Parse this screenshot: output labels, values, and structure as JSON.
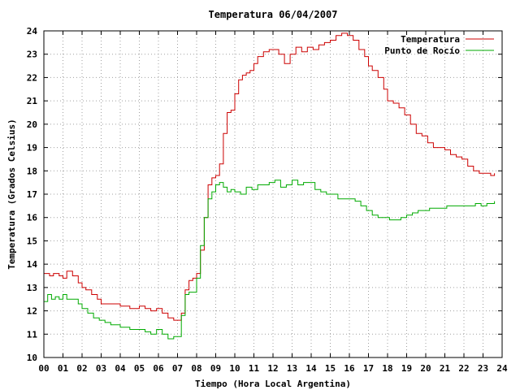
{
  "chart_data": {
    "type": "line",
    "title": "Temperatura 06/04/2007",
    "xlabel": "Tiempo (Hora Local Argentina)",
    "ylabel": "Temperatura (Grados Celsius)",
    "xlim": [
      0,
      24
    ],
    "ylim": [
      10,
      24
    ],
    "grid": true,
    "legend_position": "top-right",
    "x_ticks": [
      "00",
      "01",
      "02",
      "03",
      "04",
      "05",
      "06",
      "07",
      "08",
      "09",
      "10",
      "11",
      "12",
      "13",
      "14",
      "15",
      "16",
      "17",
      "18",
      "19",
      "20",
      "21",
      "22",
      "23",
      "24"
    ],
    "y_ticks": [
      "10",
      "11",
      "12",
      "13",
      "14",
      "15",
      "16",
      "17",
      "18",
      "19",
      "20",
      "21",
      "22",
      "23",
      "24"
    ],
    "series": [
      {
        "name": "Temperatura",
        "color": "#cc0000",
        "x": [
          0.0,
          0.3,
          0.5,
          0.8,
          1.0,
          1.2,
          1.5,
          1.8,
          2.0,
          2.2,
          2.5,
          2.8,
          3.0,
          3.5,
          4.0,
          4.5,
          5.0,
          5.3,
          5.6,
          5.9,
          6.2,
          6.5,
          6.8,
          7.0,
          7.2,
          7.4,
          7.6,
          7.8,
          8.0,
          8.2,
          8.4,
          8.6,
          8.8,
          9.0,
          9.2,
          9.4,
          9.6,
          9.8,
          10.0,
          10.2,
          10.4,
          10.6,
          10.8,
          11.0,
          11.2,
          11.5,
          11.8,
          12.0,
          12.3,
          12.6,
          12.9,
          13.2,
          13.5,
          13.8,
          14.1,
          14.4,
          14.7,
          15.0,
          15.3,
          15.6,
          15.9,
          16.2,
          16.5,
          16.8,
          17.0,
          17.2,
          17.5,
          17.8,
          18.0,
          18.3,
          18.6,
          18.9,
          19.2,
          19.5,
          19.8,
          20.1,
          20.4,
          20.7,
          21.0,
          21.3,
          21.6,
          21.9,
          22.2,
          22.5,
          22.8,
          23.1,
          23.4,
          23.6
        ],
        "values": [
          13.6,
          13.5,
          13.6,
          13.5,
          13.4,
          13.7,
          13.5,
          13.2,
          13.0,
          12.9,
          12.7,
          12.5,
          12.3,
          12.3,
          12.2,
          12.1,
          12.2,
          12.1,
          12.0,
          12.1,
          11.9,
          11.7,
          11.6,
          11.6,
          11.9,
          12.9,
          13.3,
          13.4,
          13.6,
          14.6,
          16.0,
          17.4,
          17.7,
          17.8,
          18.3,
          19.6,
          20.5,
          20.6,
          21.3,
          21.9,
          22.1,
          22.2,
          22.3,
          22.6,
          22.9,
          23.1,
          23.2,
          23.2,
          23.0,
          22.6,
          23.0,
          23.3,
          23.1,
          23.3,
          23.2,
          23.4,
          23.5,
          23.6,
          23.8,
          23.9,
          23.8,
          23.6,
          23.2,
          22.9,
          22.5,
          22.3,
          22.0,
          21.5,
          21.0,
          20.9,
          20.7,
          20.4,
          20.0,
          19.6,
          19.5,
          19.2,
          19.0,
          19.0,
          18.9,
          18.7,
          18.6,
          18.5,
          18.2,
          18.0,
          17.9,
          17.9,
          17.8,
          17.9
        ]
      },
      {
        "name": "Punto de Rocío",
        "color": "#00aa00",
        "x": [
          0.0,
          0.2,
          0.4,
          0.6,
          0.8,
          1.0,
          1.2,
          1.5,
          1.8,
          2.0,
          2.3,
          2.6,
          2.9,
          3.2,
          3.5,
          4.0,
          4.5,
          5.0,
          5.3,
          5.6,
          5.9,
          6.2,
          6.5,
          6.8,
          7.0,
          7.2,
          7.4,
          7.6,
          7.8,
          8.0,
          8.2,
          8.4,
          8.6,
          8.8,
          9.0,
          9.2,
          9.4,
          9.6,
          9.8,
          10.0,
          10.3,
          10.6,
          10.9,
          11.2,
          11.5,
          11.8,
          12.1,
          12.4,
          12.7,
          13.0,
          13.3,
          13.6,
          13.9,
          14.2,
          14.5,
          14.8,
          15.1,
          15.4,
          15.7,
          16.0,
          16.3,
          16.6,
          16.9,
          17.2,
          17.5,
          17.8,
          18.1,
          18.4,
          18.7,
          19.0,
          19.3,
          19.6,
          19.9,
          20.2,
          20.5,
          20.8,
          21.1,
          21.4,
          21.7,
          22.0,
          22.3,
          22.6,
          22.9,
          23.2,
          23.5,
          23.6
        ],
        "values": [
          12.4,
          12.7,
          12.5,
          12.6,
          12.5,
          12.7,
          12.5,
          12.5,
          12.3,
          12.1,
          11.9,
          11.7,
          11.6,
          11.5,
          11.4,
          11.3,
          11.2,
          11.2,
          11.1,
          11.0,
          11.2,
          11.0,
          10.8,
          10.9,
          10.9,
          11.8,
          12.7,
          12.8,
          12.8,
          13.4,
          14.8,
          16.0,
          16.8,
          17.1,
          17.4,
          17.5,
          17.3,
          17.1,
          17.2,
          17.1,
          17.0,
          17.3,
          17.2,
          17.4,
          17.4,
          17.5,
          17.6,
          17.3,
          17.4,
          17.6,
          17.4,
          17.5,
          17.5,
          17.2,
          17.1,
          17.0,
          17.0,
          16.8,
          16.8,
          16.8,
          16.7,
          16.5,
          16.3,
          16.1,
          16.0,
          16.0,
          15.9,
          15.9,
          16.0,
          16.1,
          16.2,
          16.3,
          16.3,
          16.4,
          16.4,
          16.4,
          16.5,
          16.5,
          16.5,
          16.5,
          16.5,
          16.6,
          16.5,
          16.6,
          16.6,
          16.7
        ]
      }
    ]
  }
}
